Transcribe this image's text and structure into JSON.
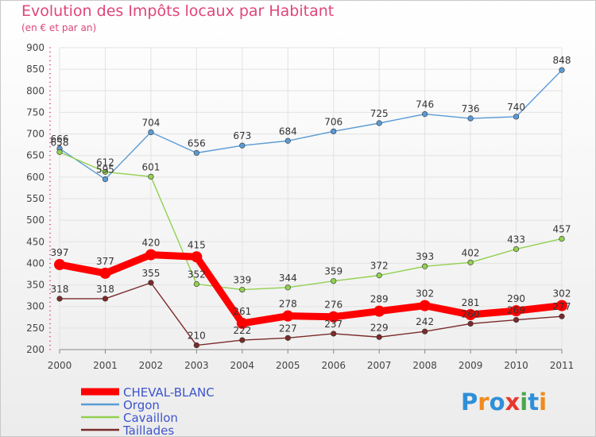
{
  "header": {
    "title": "Evolution des Impôts locaux par Habitant",
    "subtitle": "(en € et par an)"
  },
  "logo": {
    "letters": [
      "P",
      "r",
      "o",
      "x",
      "i",
      "t",
      "i"
    ],
    "colors": [
      "#2f8fd8",
      "#f08a1c",
      "#2f8fd8",
      "#e8372e",
      "#49a84a",
      "#2f8fd8",
      "#f08a1c"
    ]
  },
  "chart_data": {
    "type": "line",
    "title": "Evolution des Impôts locaux par Habitant",
    "subtitle": "(en € et par an)",
    "xlabel": "",
    "ylabel": "",
    "categories": [
      "2000",
      "2001",
      "2002",
      "2003",
      "2004",
      "2005",
      "2006",
      "2007",
      "2008",
      "2009",
      "2010",
      "2011"
    ],
    "ylim": [
      200,
      900
    ],
    "yticks": [
      200,
      250,
      300,
      350,
      400,
      450,
      500,
      550,
      600,
      650,
      700,
      750,
      800,
      850,
      900
    ],
    "grid": true,
    "legend_position": "bottom-left",
    "series": [
      {
        "name": "CHEVAL-BLANC",
        "color": "#ff0000",
        "emphasis": true,
        "values": [
          397,
          377,
          420,
          415,
          261,
          278,
          276,
          289,
          302,
          281,
          290,
          302
        ],
        "labels": [
          "397",
          "377",
          "420",
          "415",
          "261",
          "278",
          "276",
          "289",
          "302",
          "281",
          "290",
          "302"
        ]
      },
      {
        "name": "Orgon",
        "color": "#5b9bd5",
        "values": [
          666,
          595,
          704,
          656,
          673,
          684,
          706,
          725,
          746,
          736,
          740,
          848
        ],
        "labels": [
          "666",
          "595",
          "704",
          "656",
          "673",
          "684",
          "706",
          "725",
          "746",
          "736",
          "740",
          "848"
        ]
      },
      {
        "name": "Cavaillon",
        "color": "#92d050",
        "values": [
          658,
          612,
          601,
          352,
          339,
          344,
          359,
          372,
          393,
          402,
          433,
          457
        ],
        "labels": [
          "658",
          "612",
          "601",
          "352",
          "339",
          "344",
          "359",
          "372",
          "393",
          "402",
          "433",
          "457"
        ]
      },
      {
        "name": "Taillades",
        "color": "#7b2a2a",
        "values": [
          318,
          318,
          355,
          210,
          222,
          227,
          237,
          229,
          242,
          260,
          269,
          277
        ],
        "labels": [
          "318",
          "318",
          "355",
          "210",
          "222",
          "227",
          "237",
          "229",
          "242",
          "260",
          "269",
          "277"
        ]
      }
    ]
  }
}
